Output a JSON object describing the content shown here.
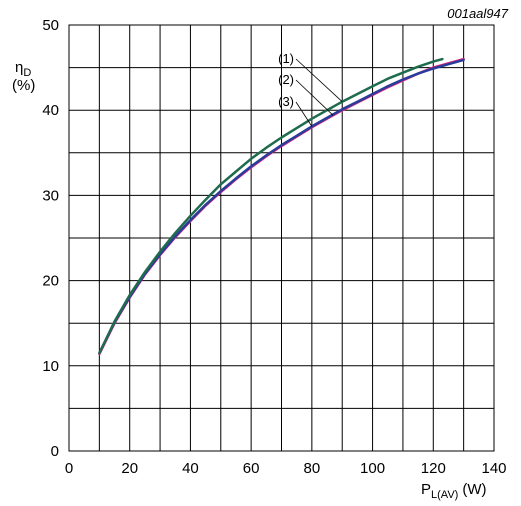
{
  "chart_data": {
    "type": "line",
    "figure_code": "001aal947",
    "ylabel": {
      "symbol": "η",
      "subscript": "D",
      "unit": "(%)"
    },
    "xlabel": {
      "symbol": "P",
      "subscript": "L(AV)",
      "unit": "(W)"
    },
    "xlim": [
      0,
      140
    ],
    "ylim": [
      0,
      50
    ],
    "x_ticks": [
      0,
      20,
      40,
      60,
      80,
      100,
      120,
      140
    ],
    "y_ticks": [
      0,
      10,
      20,
      30,
      40,
      50
    ],
    "x_tick_labels": [
      "0",
      "20",
      "40",
      "60",
      "80",
      "100",
      "120",
      "140"
    ],
    "y_tick_labels": [
      "0",
      "10",
      "20",
      "30",
      "40",
      "50"
    ],
    "grid": true,
    "series": [
      {
        "name": "(1)",
        "color": "#1f6b4e",
        "x": [
          10,
          15,
          20,
          25,
          30,
          35,
          40,
          45,
          50,
          55,
          60,
          65,
          70,
          75,
          80,
          85,
          90,
          95,
          100,
          105,
          110,
          115,
          120,
          123
        ],
        "y": [
          11.5,
          15.2,
          18.3,
          21.0,
          23.4,
          25.6,
          27.6,
          29.5,
          31.3,
          32.8,
          34.3,
          35.6,
          36.8,
          37.9,
          39.0,
          40.0,
          41.0,
          41.9,
          42.8,
          43.7,
          44.4,
          45.1,
          45.7,
          46.0
        ]
      },
      {
        "name": "(2)",
        "color": "#e0207a",
        "x": [
          10,
          15,
          20,
          25,
          30,
          35,
          40,
          45,
          50,
          55,
          60,
          65,
          70,
          75,
          80,
          85,
          90,
          95,
          100,
          105,
          110,
          115,
          120,
          125,
          130
        ],
        "y": [
          11.4,
          15.0,
          18.0,
          20.7,
          23.0,
          25.1,
          27.0,
          28.8,
          30.4,
          31.9,
          33.3,
          34.6,
          35.8,
          36.9,
          38.0,
          39.0,
          40.0,
          40.9,
          41.8,
          42.7,
          43.5,
          44.3,
          45.0,
          45.5,
          46.0
        ]
      },
      {
        "name": "(3)",
        "color": "#283c9a",
        "x": [
          10,
          15,
          20,
          25,
          30,
          35,
          40,
          45,
          50,
          55,
          60,
          65,
          70,
          75,
          80,
          85,
          90,
          95,
          100,
          105,
          110,
          115,
          120,
          125,
          130
        ],
        "y": [
          11.5,
          15.1,
          18.1,
          20.8,
          23.1,
          25.2,
          27.1,
          28.9,
          30.5,
          32.0,
          33.4,
          34.7,
          35.9,
          37.0,
          38.1,
          39.1,
          40.1,
          41.0,
          41.9,
          42.8,
          43.6,
          44.3,
          44.9,
          45.4,
          45.9
        ]
      }
    ]
  }
}
